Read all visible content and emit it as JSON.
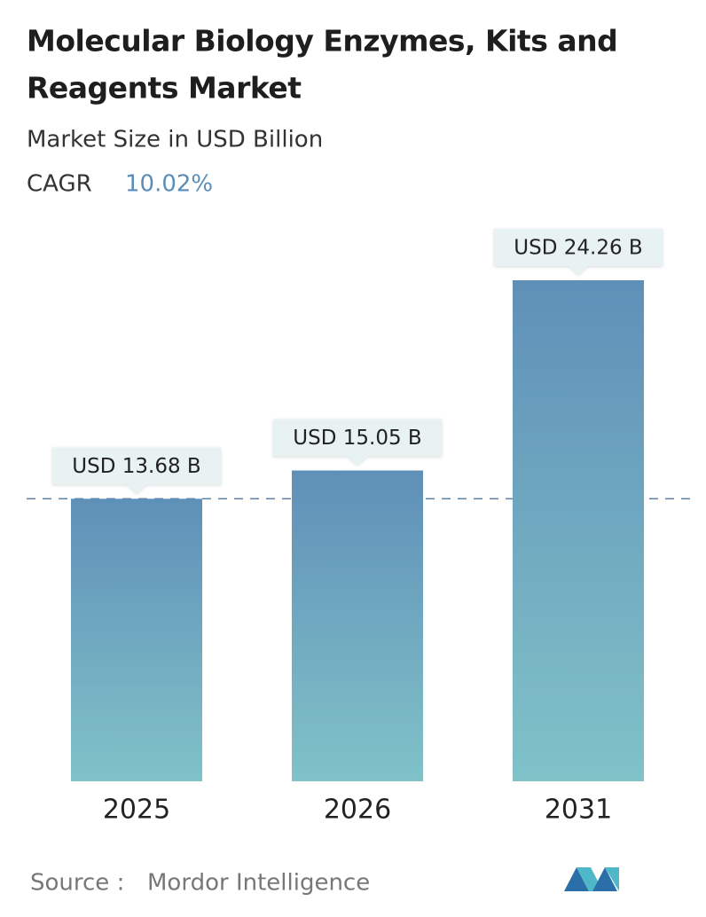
{
  "chart_data": {
    "type": "bar",
    "title": [
      "Molecular Biology Enzymes, Kits and",
      "Reagents Market"
    ],
    "subtitle": "Market Size in USD Billion",
    "cagr_label": "CAGR",
    "cagr_value": "10.02%",
    "categories": [
      "2025",
      "2026",
      "2031"
    ],
    "values": [
      13.68,
      15.05,
      24.26
    ],
    "value_labels": [
      "USD 13.68 B",
      "USD 15.05 B",
      "USD 24.26 B"
    ],
    "source_label": "Source :",
    "source": "Mordor Intelligence"
  }
}
